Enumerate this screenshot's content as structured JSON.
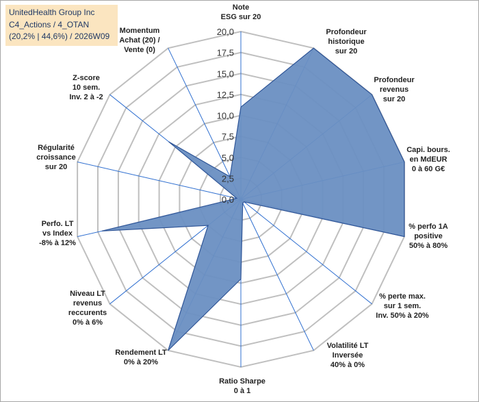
{
  "title_box": {
    "line1": "UnitedHealth Group Inc",
    "line2": "C4_Actions / 4_OTAN",
    "line3": "(20,2% | 44,6%) / 2026W09"
  },
  "chart_data": {
    "type": "radar",
    "rmin": 0,
    "rmax": 20,
    "grid": true,
    "tick_labels": [
      "0,0",
      "2,5",
      "5,0",
      "7,5",
      "10,0",
      "12,5",
      "15,0",
      "17,5",
      "20,0"
    ],
    "colors": {
      "fill": "#6a8fc2",
      "stroke": "#2f5597",
      "grid": "#bfbfbf",
      "spoke": "#2f6fd0"
    },
    "axes": [
      {
        "label": [
          "Note",
          "ESG sur 20"
        ],
        "value": 11.0
      },
      {
        "label": [
          "Profondeur",
          "historique",
          "sur 20"
        ],
        "value": 20.0
      },
      {
        "label": [
          "Profondeur",
          "revenus",
          "sur 20"
        ],
        "value": 20.0
      },
      {
        "label": [
          "Capi. bours.",
          "en MdEUR",
          "0 à 60 G€"
        ],
        "value": 20.0
      },
      {
        "label": [
          "% perfo 1A",
          "positive",
          "50% à 80%"
        ],
        "value": 20.0
      },
      {
        "label": [
          "% perte max.",
          "sur 1 sem.",
          "Inv. 50% à 20%"
        ],
        "value": 0.5
      },
      {
        "label": [
          "Volatilité LT",
          "Inversée",
          "40% à 0%"
        ],
        "value": 0.5
      },
      {
        "label": [
          "Ratio Sharpe",
          "0 à 1"
        ],
        "value": 9.5
      },
      {
        "label": [
          "Rendement LT",
          "0% à 20%"
        ],
        "value": 20.0
      },
      {
        "label": [
          "Niveau LT",
          "revenus",
          "reccurents",
          "0% à 6%"
        ],
        "value": 5.0
      },
      {
        "label": [
          "Perfo. LT",
          "vs Index",
          "-8% à 12%"
        ],
        "value": 17.0
      },
      {
        "label": [
          "Régularité",
          "croissance",
          "sur 20"
        ],
        "value": 0.5
      },
      {
        "label": [
          "Z-score",
          "10 sem.",
          "Inv. 2 à -2"
        ],
        "value": 11.0
      },
      {
        "label": [
          "Momentum",
          "Achat (20) /",
          "Vente (0)"
        ],
        "value": 3.0
      }
    ]
  }
}
